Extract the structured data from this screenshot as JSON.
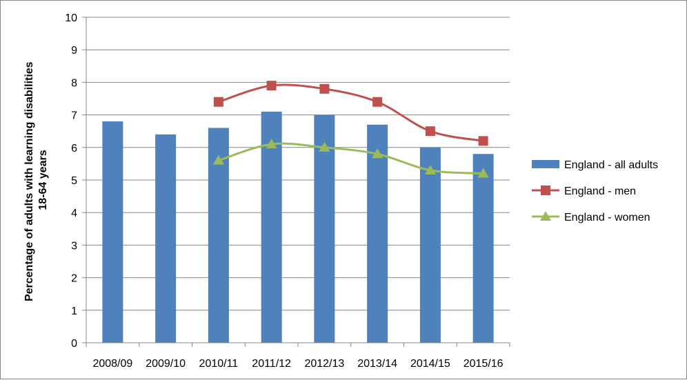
{
  "chart_data": {
    "type": "bar",
    "categories": [
      "2008/09",
      "2009/10",
      "2010/11",
      "2011/12",
      "2012/13",
      "2013/14",
      "2014/15",
      "2015/16"
    ],
    "ylim": [
      0,
      10
    ],
    "yticks": [
      0,
      1,
      2,
      3,
      4,
      5,
      6,
      7,
      8,
      9,
      10
    ],
    "ylabel_line1": "Percentage of adults with learning disabilities",
    "ylabel_line2": "18-64 years",
    "grid": true,
    "legend_position": "right",
    "series": [
      {
        "name": "England - all adults",
        "kind": "bar",
        "color": "#4F81BD",
        "values": [
          6.8,
          6.4,
          6.6,
          7.1,
          7.0,
          6.7,
          6.0,
          5.8
        ]
      },
      {
        "name": "England - men",
        "kind": "line",
        "marker": "square",
        "color": "#C0504D",
        "values": [
          null,
          null,
          7.4,
          7.9,
          7.8,
          7.4,
          6.5,
          6.2
        ]
      },
      {
        "name": "England - women",
        "kind": "line",
        "marker": "triangle",
        "color": "#9BBB59",
        "values": [
          null,
          null,
          5.6,
          6.1,
          6.0,
          5.8,
          5.3,
          5.2
        ]
      }
    ]
  }
}
